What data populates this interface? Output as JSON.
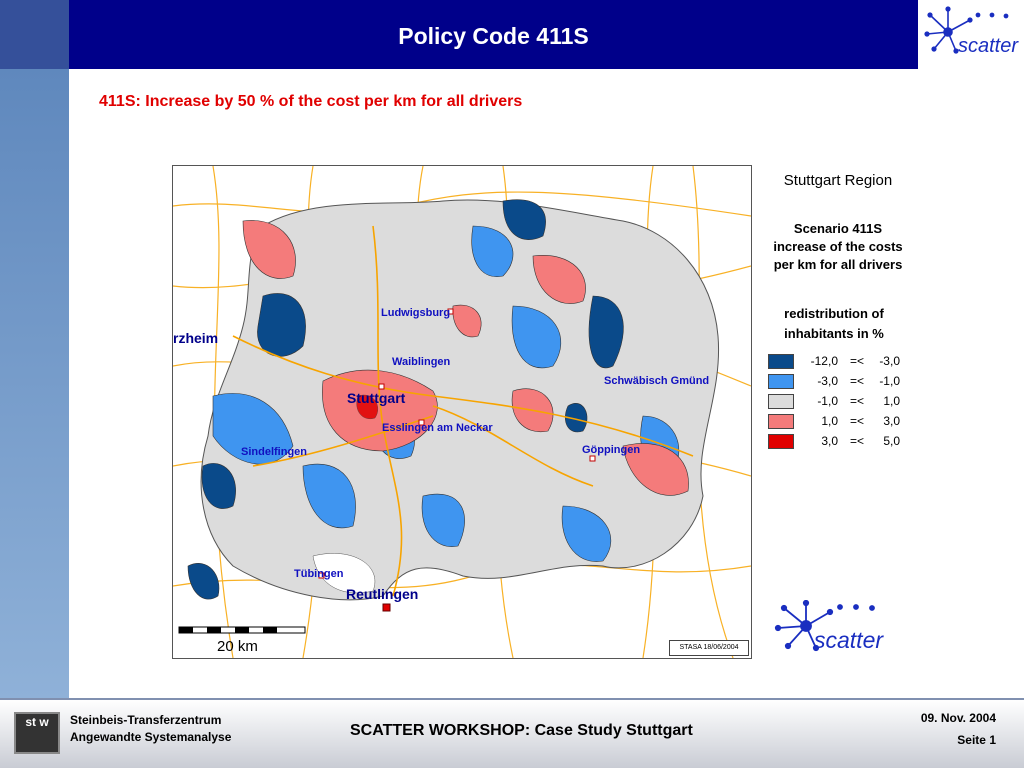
{
  "header": {
    "title": "Policy Code 411S"
  },
  "subtitle": "411S: Increase by 50 % of the cost per km for all drivers",
  "logo": {
    "text": "scatter"
  },
  "map": {
    "place_labels": [
      "rzheim",
      "Ludwigsburg",
      "Waiblingen",
      "Stuttgart",
      "Esslingen am Neckar",
      "Sindelfingen",
      "Schwäbisch Gmünd",
      "Göppingen",
      "Tübingen",
      "Reutlingen"
    ],
    "scale_label": "20 km",
    "credit": "STASA 18/06/2004"
  },
  "legend": {
    "region": "Stuttgart Region",
    "scenario": "Scenario 411S\nincrease of the costs\nper km for all drivers",
    "caption": "redistribution of\ninhabitants in %",
    "classes": [
      {
        "low": "-12,0",
        "op": "=<",
        "high": "-3,0",
        "color": "#0a4a8a"
      },
      {
        "low": "-3,0",
        "op": "=<",
        "high": "-1,0",
        "color": "#3f95f0"
      },
      {
        "low": "-1,0",
        "op": "=<",
        "high": "1,0",
        "color": "#dcdcdc"
      },
      {
        "low": "1,0",
        "op": "=<",
        "high": "3,0",
        "color": "#f47b7b"
      },
      {
        "low": "3,0",
        "op": "=<",
        "high": "5,0",
        "color": "#e00000"
      }
    ]
  },
  "footer": {
    "org": "Steinbeis-Transferzentrum\nAngewandte Systemanalyse",
    "title": "SCATTER WORKSHOP: Case Study Stuttgart",
    "date": "09. Nov.  2004",
    "page": "Seite 1",
    "stw_logo": "st w"
  }
}
